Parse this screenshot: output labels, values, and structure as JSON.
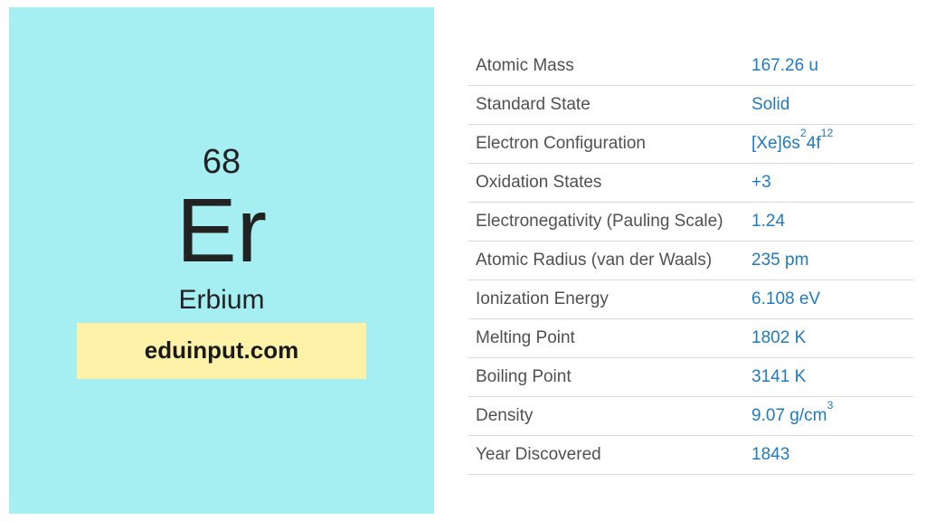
{
  "element": {
    "atomic_number": "68",
    "symbol": "Er",
    "name": "Erbium",
    "tile_bg": "#a5eef2",
    "text_color": "#222222"
  },
  "watermark": {
    "text": "eduinput.com",
    "bg": "#fdf2a7",
    "text_color": "#1a1a1a"
  },
  "table": {
    "label_color": "#505050",
    "value_color": "#1f7ac0",
    "border_color": "#d9d9d9",
    "label_fontsize": 19,
    "value_fontsize": 19
  },
  "properties": [
    {
      "label": "Atomic Mass",
      "value": "167.26 u"
    },
    {
      "label": "Standard State",
      "value": "Solid"
    },
    {
      "label": "Electron Configuration",
      "value_html": "[Xe]6s<sup>2</sup>4f<sup>12</sup>",
      "value": "[Xe]6s24f12"
    },
    {
      "label": "Oxidation States",
      "value": "+3"
    },
    {
      "label": "Electronegativity (Pauling Scale)",
      "value": "1.24"
    },
    {
      "label": "Atomic Radius (van der Waals)",
      "value": "235 pm"
    },
    {
      "label": "Ionization Energy",
      "value": "6.108 eV"
    },
    {
      "label": "Melting Point",
      "value": "1802 K"
    },
    {
      "label": "Boiling Point",
      "value": "3141 K"
    },
    {
      "label": "Density",
      "value_html": "9.07 g/cm<sup>3</sup>",
      "value": "9.07 g/cm3"
    },
    {
      "label": "Year Discovered",
      "value": "1843"
    }
  ]
}
